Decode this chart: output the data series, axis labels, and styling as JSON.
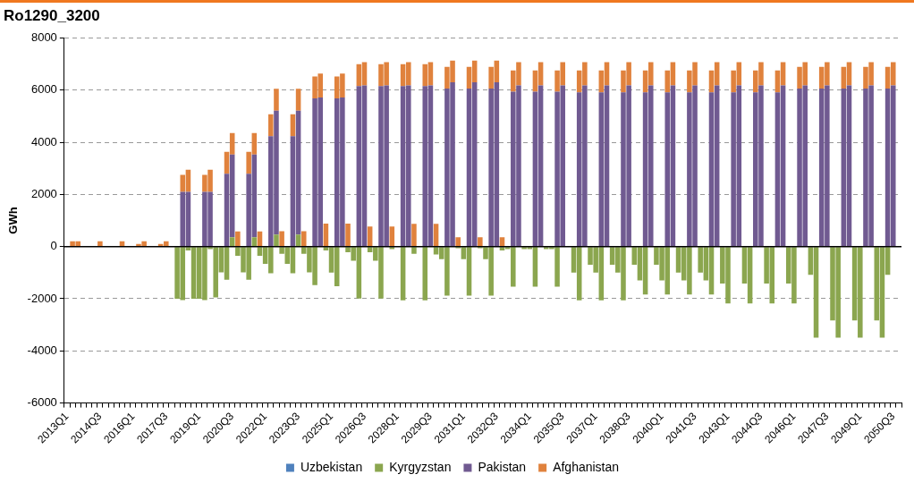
{
  "chart_data": {
    "type": "bar",
    "title": "Ro1290_3200",
    "ylabel": "GWh",
    "stacked": true,
    "grid": "y",
    "legend": "bottom",
    "categories": [
      "2013Q1",
      null,
      null,
      null,
      null,
      null,
      "2014Q3",
      null,
      null,
      null,
      null,
      null,
      "2016Q1",
      null,
      null,
      null,
      null,
      null,
      "2017Q3",
      null,
      null,
      null,
      null,
      null,
      "2019Q1",
      null,
      null,
      null,
      null,
      null,
      "2020Q3",
      null,
      null,
      null,
      null,
      null,
      "2022Q1",
      null,
      null,
      null,
      null,
      null,
      "2023Q3",
      null,
      null,
      null,
      null,
      null,
      "2025Q1",
      null,
      null,
      null,
      null,
      null,
      "2026Q3",
      null,
      null,
      null,
      null,
      null,
      "2028Q1",
      null,
      null,
      null,
      null,
      null,
      "2029Q3",
      null,
      null,
      null,
      null,
      null,
      "2031Q1",
      null,
      null,
      null,
      null,
      null,
      "2032Q3",
      null,
      null,
      null,
      null,
      null,
      "2034Q1",
      null,
      null,
      null,
      null,
      null,
      "2035Q3",
      null,
      null,
      null,
      null,
      null,
      "2037Q1",
      null,
      null,
      null,
      null,
      null,
      "2038Q3",
      null,
      null,
      null,
      null,
      null,
      "2040Q1",
      null,
      null,
      null,
      null,
      null,
      "2041Q3",
      null,
      null,
      null,
      null,
      null,
      "2043Q1",
      null,
      null,
      null,
      null,
      null,
      "2044Q3",
      null,
      null,
      null,
      null,
      null,
      "2046Q1",
      null,
      null,
      null,
      null,
      null,
      "2047Q3",
      null,
      null,
      null,
      null,
      null,
      "2049Q1",
      null,
      null,
      null,
      null,
      null,
      "2050Q3",
      null
    ],
    "ylim": [
      -6000,
      8000
    ],
    "yticks": [
      -6000,
      -4000,
      -2000,
      0,
      2000,
      4000,
      6000,
      8000
    ],
    "series": [
      {
        "name": "Uzbekistan",
        "color": "#4f81bd",
        "values": [
          0,
          0,
          0,
          0,
          0,
          0,
          0,
          0,
          0,
          0,
          0,
          0,
          0,
          0,
          0,
          0,
          0,
          0,
          0,
          0,
          0,
          0,
          0,
          0,
          0,
          0,
          0,
          0,
          0,
          0,
          0,
          0,
          0,
          0,
          0,
          0,
          0,
          0,
          0,
          0,
          0,
          0,
          0,
          0,
          0,
          0,
          0,
          0,
          0,
          0,
          0,
          0,
          0,
          0,
          0,
          0,
          0,
          0,
          0,
          0,
          0,
          0,
          0,
          0,
          0,
          0,
          0,
          0,
          0,
          0,
          0,
          0,
          0,
          0,
          0,
          0,
          0,
          0,
          0,
          0,
          0,
          0,
          0,
          0,
          0,
          0,
          0,
          0,
          0,
          0,
          0,
          0,
          0,
          0,
          0,
          0,
          0,
          0,
          0,
          0,
          0,
          0,
          0,
          0,
          0,
          0,
          0,
          0,
          0,
          0,
          0,
          0,
          0,
          0,
          0,
          0,
          0,
          0,
          0,
          0,
          0,
          0,
          0,
          0,
          0,
          0,
          0,
          0,
          0,
          0,
          0,
          0,
          0,
          0,
          0,
          0,
          0,
          0,
          0,
          0,
          0,
          0,
          0,
          0,
          0,
          0,
          0,
          0,
          0,
          0,
          0,
          0
        ]
      },
      {
        "name": "Kyrgyzstan",
        "color": "#8ba64f",
        "values": [
          0,
          0,
          0,
          0,
          0,
          0,
          0,
          0,
          0,
          0,
          0,
          0,
          0,
          0,
          0,
          0,
          0,
          0,
          0,
          0,
          -2000,
          -2050,
          -150,
          -2000,
          -2000,
          -2050,
          -100,
          -1950,
          -990,
          -1270,
          360,
          -350,
          -990,
          -1270,
          360,
          -350,
          -660,
          -1020,
          460,
          -280,
          -660,
          -1020,
          460,
          -280,
          -990,
          -1480,
          0,
          -150,
          -1000,
          -1520,
          0,
          -220,
          -540,
          -1990,
          0,
          -220,
          -540,
          -1990,
          0,
          -100,
          0,
          -2060,
          0,
          -280,
          0,
          -2060,
          0,
          -300,
          -480,
          -1880,
          0,
          -60,
          -480,
          -1880,
          0,
          -60,
          -480,
          -1880,
          0,
          -150,
          -100,
          -1540,
          0,
          -100,
          -100,
          -1540,
          0,
          -100,
          -100,
          -1540,
          0,
          0,
          -1000,
          -2060,
          0,
          -700,
          -1000,
          -2060,
          0,
          -700,
          -1000,
          -2060,
          0,
          -700,
          -1300,
          -1840,
          0,
          -700,
          -1300,
          -1840,
          0,
          -1000,
          -1300,
          -1840,
          0,
          -1000,
          -1300,
          -1840,
          0,
          -1420,
          -2180,
          0,
          0,
          -1420,
          -2180,
          0,
          0,
          -1420,
          -2180,
          0,
          0,
          -1420,
          -2180,
          0,
          0,
          -1080,
          -3490,
          0,
          0,
          -2830,
          -3490,
          0,
          0,
          -2830,
          -3490,
          0,
          0,
          -2830,
          -3490,
          -1080,
          0,
          0
        ]
      },
      {
        "name": "Pakistan",
        "color": "#705a91",
        "values": [
          0,
          0,
          0,
          0,
          0,
          0,
          0,
          0,
          0,
          0,
          0,
          0,
          0,
          0,
          0,
          0,
          0,
          0,
          0,
          0,
          0,
          2100,
          2100,
          0,
          0,
          2100,
          2100,
          0,
          0,
          2790,
          3170,
          0,
          0,
          2790,
          3170,
          0,
          0,
          4230,
          4750,
          0,
          0,
          4230,
          4750,
          0,
          0,
          5680,
          5720,
          0,
          0,
          5680,
          5720,
          0,
          0,
          6150,
          6180,
          0,
          0,
          6150,
          6180,
          0,
          0,
          6150,
          6180,
          0,
          0,
          6150,
          6180,
          0,
          0,
          6060,
          6300,
          0,
          0,
          6060,
          6300,
          0,
          0,
          6060,
          6300,
          0,
          0,
          5940,
          6180,
          0,
          0,
          5940,
          6180,
          0,
          0,
          5940,
          6180,
          0,
          0,
          5910,
          6180,
          0,
          0,
          5910,
          6180,
          0,
          0,
          5910,
          6180,
          0,
          0,
          5910,
          6180,
          0,
          0,
          5910,
          6180,
          0,
          0,
          5910,
          6180,
          0,
          0,
          5910,
          6180,
          0,
          0,
          5910,
          6180,
          0,
          0,
          5910,
          6180,
          0,
          0,
          5910,
          6180,
          0,
          0,
          6060,
          6180,
          0,
          0,
          6060,
          6180,
          0,
          0,
          6060,
          6180,
          0,
          0,
          6060,
          6180,
          0,
          0,
          6060,
          6180,
          0
        ]
      },
      {
        "name": "Afghanistan",
        "color": "#e0823d",
        "values": [
          0,
          200,
          200,
          0,
          0,
          0,
          200,
          0,
          0,
          0,
          200,
          0,
          0,
          100,
          200,
          0,
          0,
          100,
          200,
          0,
          0,
          650,
          850,
          0,
          0,
          650,
          850,
          0,
          0,
          840,
          820,
          580,
          0,
          840,
          820,
          580,
          0,
          840,
          840,
          590,
          0,
          840,
          840,
          590,
          0,
          840,
          910,
          880,
          0,
          840,
          910,
          880,
          0,
          840,
          890,
          770,
          0,
          840,
          890,
          770,
          0,
          840,
          890,
          870,
          0,
          840,
          890,
          870,
          0,
          830,
          830,
          360,
          0,
          830,
          830,
          360,
          0,
          830,
          830,
          360,
          0,
          810,
          890,
          0,
          0,
          810,
          890,
          0,
          0,
          810,
          890,
          0,
          0,
          840,
          890,
          0,
          0,
          840,
          890,
          0,
          0,
          840,
          890,
          0,
          0,
          840,
          890,
          0,
          0,
          840,
          890,
          0,
          0,
          840,
          890,
          0,
          0,
          840,
          890,
          0,
          0,
          840,
          890,
          0,
          0,
          840,
          890,
          0,
          0,
          840,
          890,
          0,
          0,
          830,
          890,
          0,
          0,
          830,
          890,
          0,
          0,
          830,
          890,
          0,
          0,
          830,
          890,
          0,
          0,
          830,
          890,
          0
        ]
      }
    ]
  }
}
